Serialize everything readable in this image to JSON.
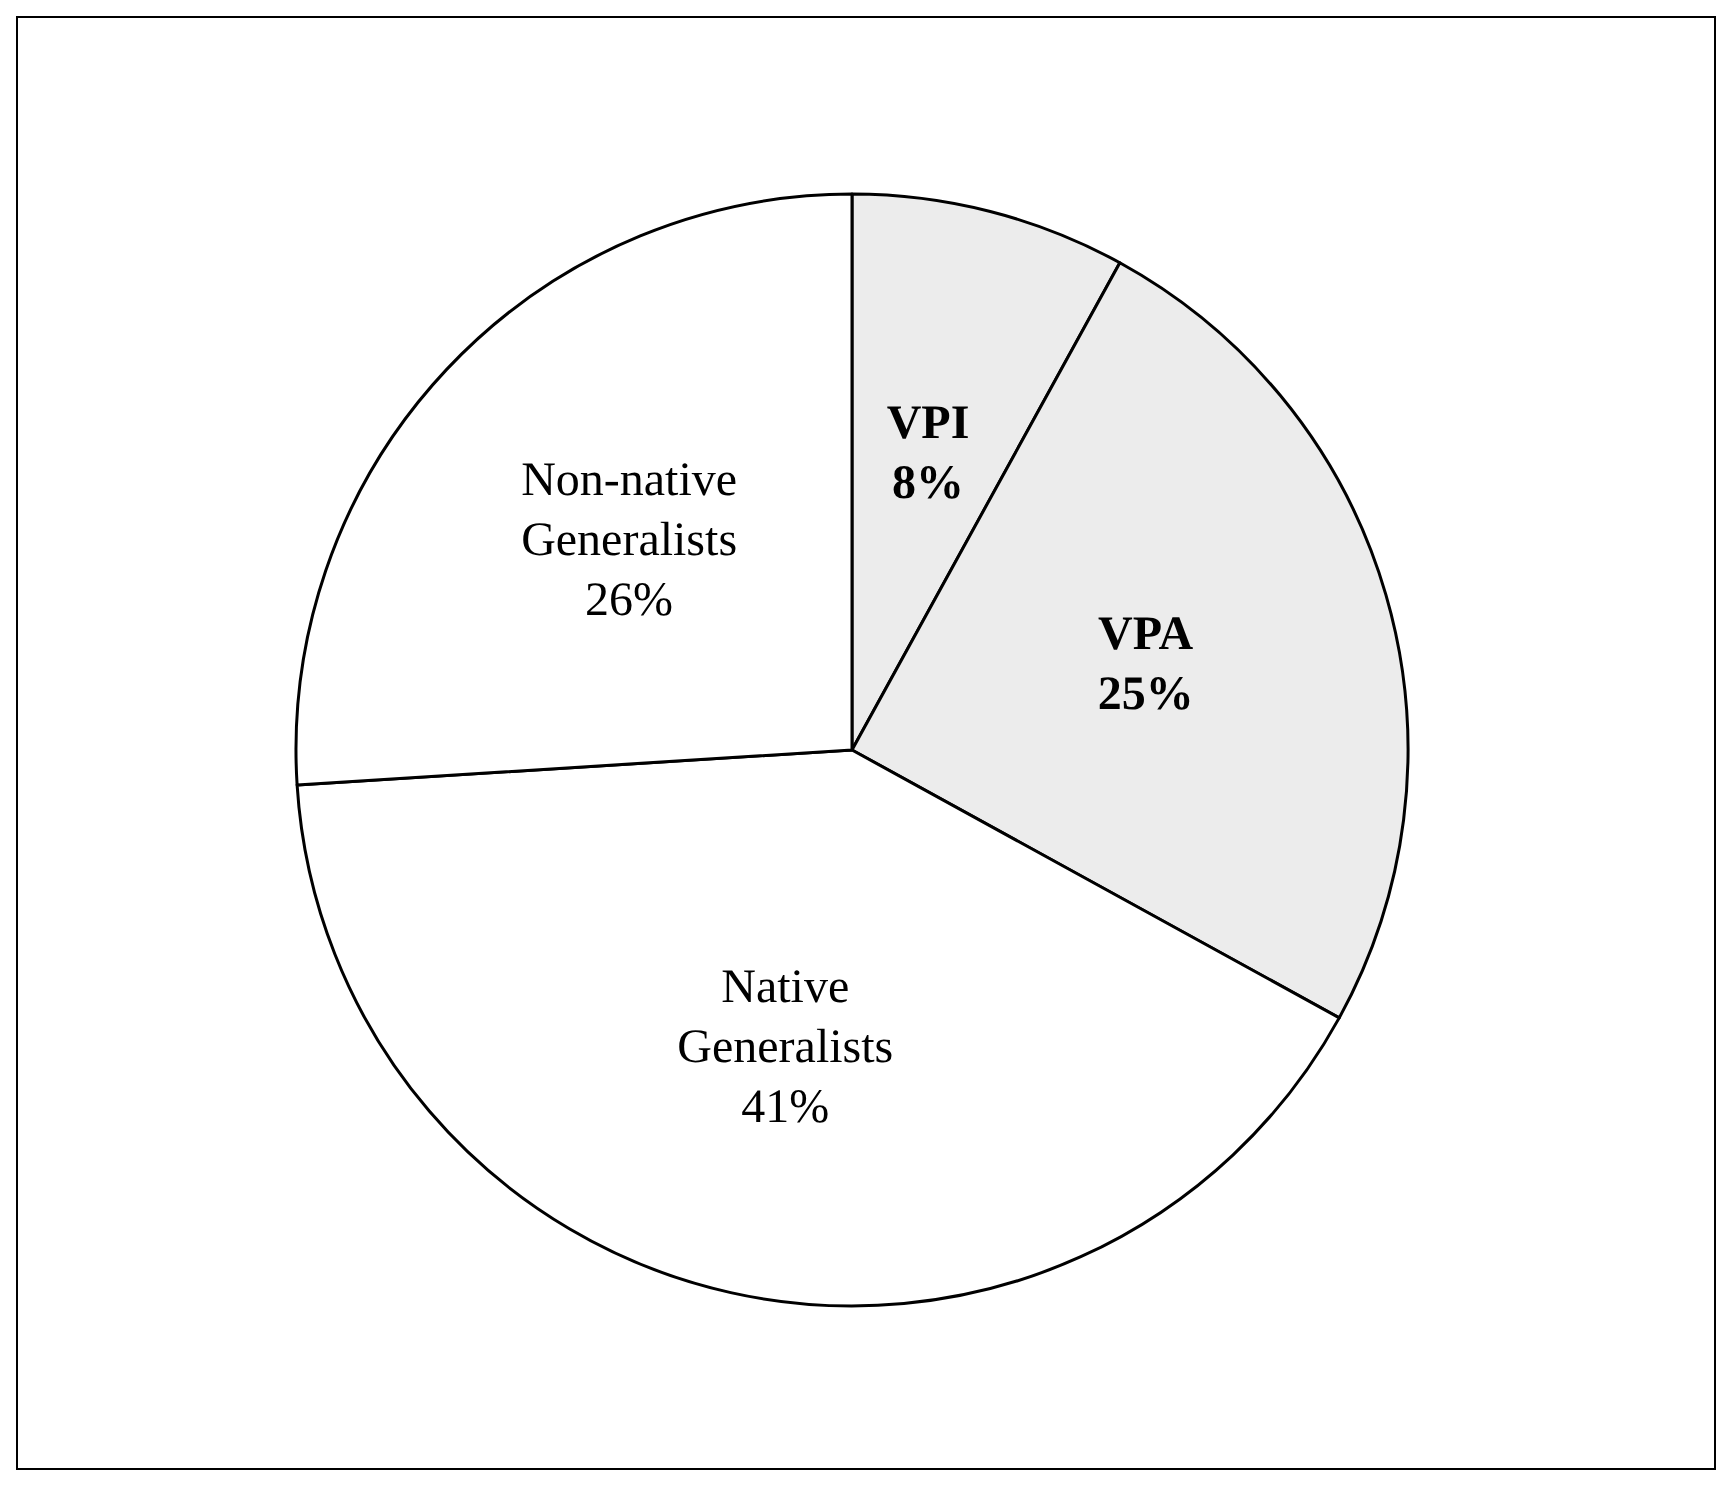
{
  "chart_data": {
    "type": "pie",
    "categories": [
      "VPI",
      "VPA",
      "Native Generalists",
      "Non-native Generalists"
    ],
    "values": [
      8,
      25,
      41,
      26
    ],
    "value_labels": [
      "8%",
      "25%",
      "41%",
      "26%"
    ],
    "colors": [
      "#ececec",
      "#ececec",
      "#ffffff",
      "#ffffff"
    ]
  }
}
